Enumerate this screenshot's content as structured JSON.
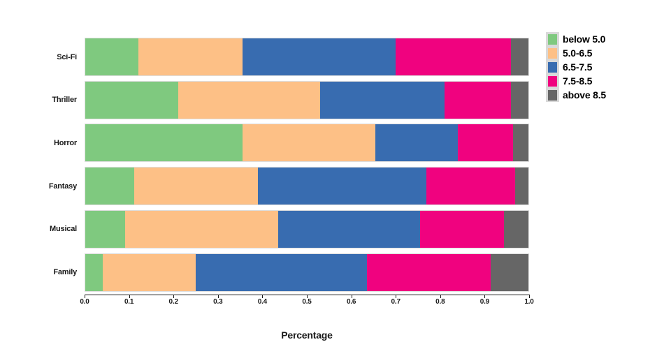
{
  "figure": {
    "background": "#ffffff"
  },
  "chart_data": {
    "type": "bar",
    "orientation": "horizontal",
    "stacked": true,
    "title": "",
    "xlabel": "Percentage",
    "ylabel": "",
    "xlim": [
      0.0,
      1.0
    ],
    "grid": false,
    "x_ticks": [
      "0.0",
      "0.1",
      "0.2",
      "0.3",
      "0.4",
      "0.5",
      "0.6",
      "0.7",
      "0.8",
      "0.9",
      "1.0"
    ],
    "categories": [
      "Sci-Fi",
      "Thriller",
      "Horror",
      "Fantasy",
      "Musical",
      "Family"
    ],
    "series": [
      {
        "name": "below 5.0",
        "color": "#7FC97F",
        "values": [
          0.12,
          0.21,
          0.355,
          0.11,
          0.09,
          0.04
        ]
      },
      {
        "name": "5.0-6.5",
        "color": "#FDC086",
        "values": [
          0.235,
          0.32,
          0.3,
          0.28,
          0.345,
          0.21
        ]
      },
      {
        "name": "6.5-7.5",
        "color": "#386CB0",
        "values": [
          0.345,
          0.28,
          0.185,
          0.38,
          0.32,
          0.385
        ]
      },
      {
        "name": "7.5-8.5",
        "color": "#F0027F",
        "values": [
          0.26,
          0.15,
          0.125,
          0.2,
          0.19,
          0.28
        ]
      },
      {
        "name": "above 8.5",
        "color": "#666666",
        "values": [
          0.04,
          0.04,
          0.035,
          0.03,
          0.055,
          0.085
        ]
      }
    ],
    "legend": {
      "position": "right",
      "key_background": "#D9D9D9",
      "entries": [
        "below 5.0",
        "5.0-6.5",
        "6.5-7.5",
        "7.5-8.5",
        "above 8.5"
      ]
    }
  }
}
